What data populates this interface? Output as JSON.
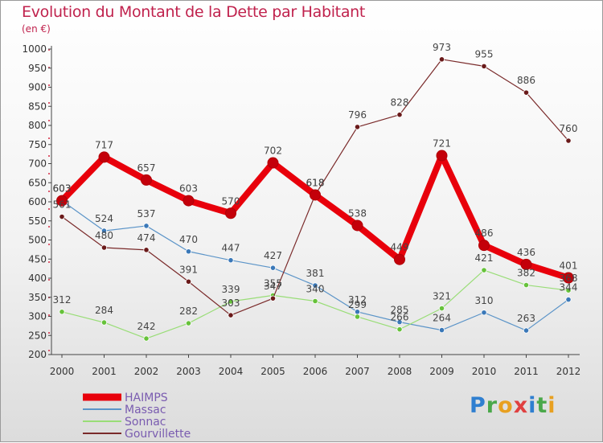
{
  "header": {
    "title": "Evolution du Montant de la Dette par Habitant",
    "subtitle": "(en €)"
  },
  "brand": {
    "letters": [
      "P",
      "r",
      "o",
      "x",
      "i",
      "t",
      "i"
    ]
  },
  "chart_data": {
    "type": "line",
    "x": [
      "2000",
      "2001",
      "2002",
      "2003",
      "2004",
      "2005",
      "2006",
      "2007",
      "2008",
      "2009",
      "2010",
      "2011",
      "2012"
    ],
    "ylim": [
      200,
      1000
    ],
    "yticks": [
      200,
      250,
      300,
      350,
      400,
      450,
      500,
      550,
      600,
      650,
      700,
      750,
      800,
      850,
      900,
      950,
      1000
    ],
    "grid": false,
    "legend_position": "bottom-left",
    "series": [
      {
        "name": "HAIMPS",
        "color": "#e8000b",
        "width": 8,
        "marker": "#c4000a",
        "values": [
          603,
          717,
          657,
          603,
          570,
          702,
          618,
          538,
          449,
          721,
          486,
          436,
          401
        ]
      },
      {
        "name": "Massac",
        "color": "#5b94c8",
        "width": 1.2,
        "marker": "#3a78b8",
        "values": [
          603,
          524,
          537,
          470,
          447,
          427,
          381,
          312,
          285,
          264,
          310,
          263,
          344
        ]
      },
      {
        "name": "Sonnac",
        "color": "#99dd77",
        "width": 1.2,
        "marker": "#66c23a",
        "values": [
          312,
          284,
          242,
          282,
          339,
          355,
          340,
          299,
          266,
          321,
          421,
          382,
          368
        ]
      },
      {
        "name": "Gourvillette",
        "color": "#7a2a2a",
        "width": 1.2,
        "marker": "#6a1a1a",
        "values": [
          561,
          480,
          474,
          391,
          303,
          347,
          618,
          796,
          828,
          973,
          955,
          886,
          760
        ]
      }
    ]
  }
}
